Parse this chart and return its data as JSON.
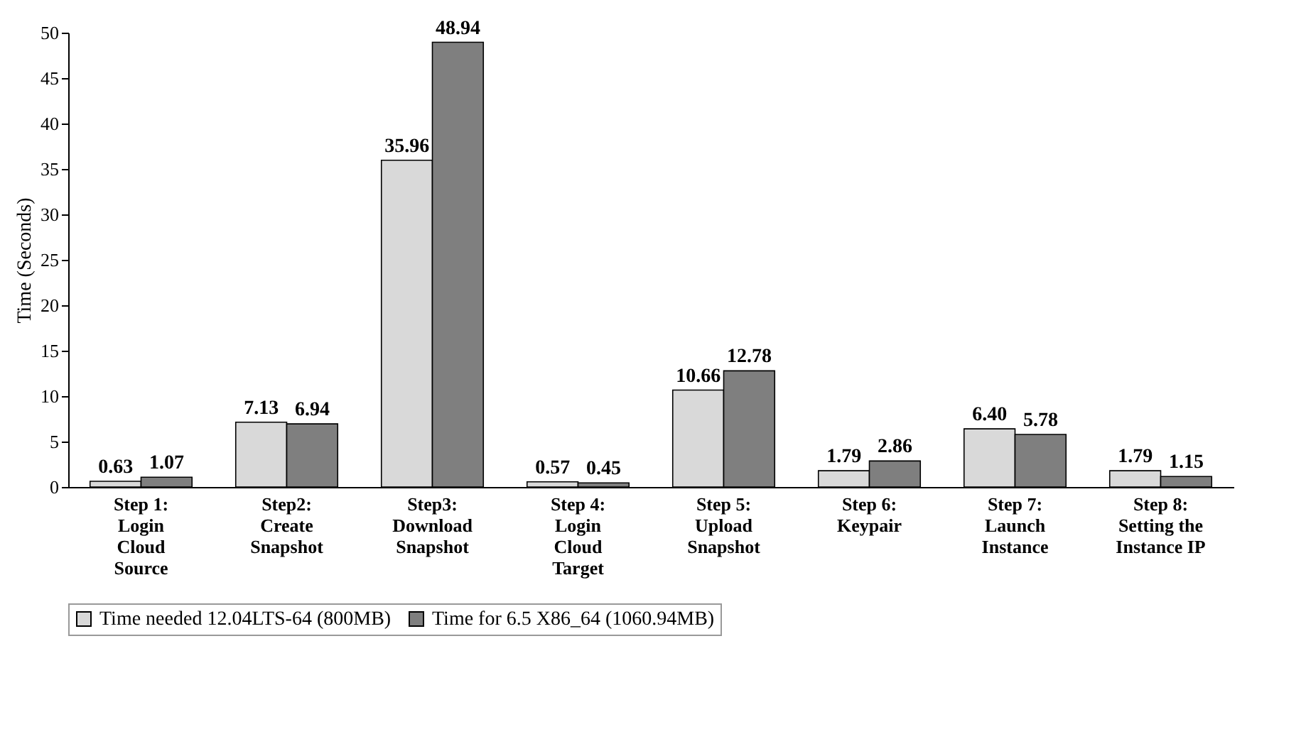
{
  "chart_data": {
    "type": "bar",
    "ylabel": "Time (Seconds)",
    "categories": [
      "Step 1:\nLogin\nCloud\nSource",
      "Step2:\nCreate\nSnapshot",
      "Step3:\nDownload\nSnapshot",
      "Step 4:\nLogin\nCloud\nTarget",
      "Step 5:\nUpload\nSnapshot",
      "Step 6:\nKeypair",
      "Step 7:\nLaunch\nInstance",
      "Step 8:\nSetting the\nInstance IP"
    ],
    "series": [
      {
        "name": "Time needed 12.04LTS-64 (800MB)",
        "color": "#d9d9d9",
        "values": [
          0.63,
          7.13,
          35.96,
          0.57,
          10.66,
          1.79,
          6.4,
          1.79
        ],
        "value_labels": [
          "0.63",
          "7.13",
          "35.96",
          "0.57",
          "10.66",
          "1.79",
          "6.40",
          "1.79"
        ]
      },
      {
        "name": "Time for 6.5 X86_64 (1060.94MB)",
        "color": "#7f7f7f",
        "values": [
          1.07,
          6.94,
          48.94,
          0.45,
          12.78,
          2.86,
          5.78,
          1.15
        ],
        "value_labels": [
          "1.07",
          "6.94",
          "48.94",
          "0.45",
          "12.78",
          "2.86",
          "5.78",
          "1.15"
        ]
      }
    ],
    "ylim": [
      0,
      50
    ],
    "yticks": [
      0,
      5,
      10,
      15,
      20,
      25,
      30,
      35,
      40,
      45,
      50
    ],
    "grid": false,
    "legend": "bottom"
  }
}
